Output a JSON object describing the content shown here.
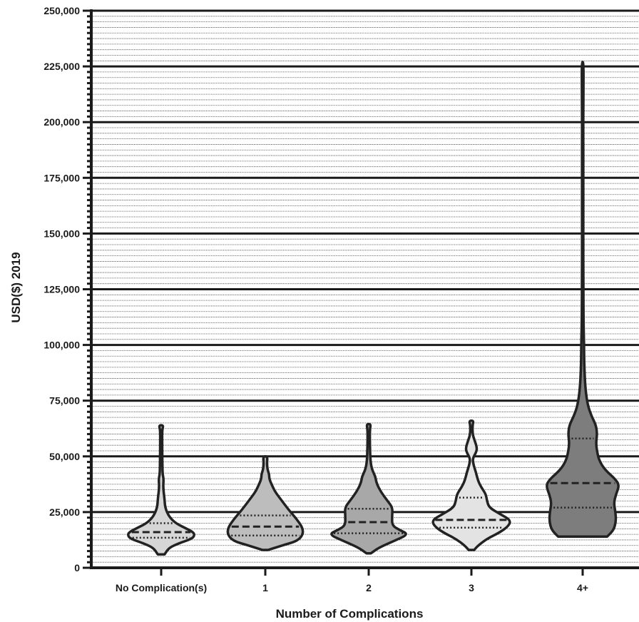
{
  "chart_data": {
    "type": "violin",
    "xlabel": "Number of Complications",
    "ylabel": "USD($) 2019",
    "ylim": [
      0,
      250000
    ],
    "y_ticks": [
      "0",
      "25,000",
      "50,000",
      "75,000",
      "100,000",
      "125,000",
      "150,000",
      "175,000",
      "200,000",
      "225,000",
      "250,000"
    ],
    "y_tick_values": [
      0,
      25000,
      50000,
      75000,
      100000,
      125000,
      150000,
      175000,
      200000,
      225000,
      250000
    ],
    "y_minor_step": 2500,
    "grid": true,
    "categories": [
      "No Complication(s)",
      "1",
      "2",
      "3",
      "4+"
    ],
    "series": [
      {
        "category": "No Complication(s)",
        "fill": "#d6d6d6",
        "median": 16000,
        "q1": 13500,
        "q3": 20000,
        "min": 6000,
        "max": 64000,
        "density": [
          [
            6000,
            0.06
          ],
          [
            9000,
            0.14
          ],
          [
            11000,
            0.32
          ],
          [
            13000,
            0.55
          ],
          [
            14500,
            0.6
          ],
          [
            16000,
            0.58
          ],
          [
            18000,
            0.42
          ],
          [
            20000,
            0.26
          ],
          [
            23000,
            0.14
          ],
          [
            27000,
            0.07
          ],
          [
            31000,
            0.06
          ],
          [
            36000,
            0.035
          ],
          [
            40000,
            0.045
          ],
          [
            42000,
            0.025
          ],
          [
            48000,
            0.02
          ],
          [
            56000,
            0.018
          ],
          [
            62000,
            0.018
          ],
          [
            64000,
            0.04
          ]
        ]
      },
      {
        "category": "1",
        "fill": "#bdbdbd",
        "median": 18500,
        "q1": 14500,
        "q3": 23500,
        "min": 8000,
        "max": 50000,
        "density": [
          [
            8000,
            0.05
          ],
          [
            10000,
            0.3
          ],
          [
            12000,
            0.58
          ],
          [
            15000,
            0.68
          ],
          [
            18000,
            0.67
          ],
          [
            22000,
            0.56
          ],
          [
            26000,
            0.42
          ],
          [
            30000,
            0.3
          ],
          [
            34000,
            0.18
          ],
          [
            37000,
            0.12
          ],
          [
            40000,
            0.07
          ],
          [
            42000,
            0.07
          ],
          [
            44000,
            0.04
          ],
          [
            47000,
            0.03
          ],
          [
            50000,
            0.04
          ]
        ]
      },
      {
        "category": "2",
        "fill": "#a8a8a8",
        "median": 20500,
        "q1": 15500,
        "q3": 26500,
        "min": 6500,
        "max": 64500,
        "density": [
          [
            6500,
            0.04
          ],
          [
            9000,
            0.18
          ],
          [
            12000,
            0.45
          ],
          [
            15000,
            0.72
          ],
          [
            17000,
            0.55
          ],
          [
            19000,
            0.42
          ],
          [
            23000,
            0.42
          ],
          [
            27000,
            0.43
          ],
          [
            30000,
            0.34
          ],
          [
            34000,
            0.22
          ],
          [
            38000,
            0.14
          ],
          [
            41000,
            0.12
          ],
          [
            44000,
            0.06
          ],
          [
            48000,
            0.03
          ],
          [
            56000,
            0.02
          ],
          [
            62000,
            0.02
          ],
          [
            64500,
            0.04
          ]
        ]
      },
      {
        "category": "3",
        "fill": "#e3e3e3",
        "median": 21500,
        "q1": 18000,
        "q3": 31500,
        "min": 8000,
        "max": 66000,
        "density": [
          [
            8000,
            0.05
          ],
          [
            10000,
            0.12
          ],
          [
            13000,
            0.28
          ],
          [
            16000,
            0.52
          ],
          [
            19000,
            0.68
          ],
          [
            21500,
            0.7
          ],
          [
            24000,
            0.52
          ],
          [
            27000,
            0.32
          ],
          [
            30000,
            0.28
          ],
          [
            33000,
            0.26
          ],
          [
            36000,
            0.18
          ],
          [
            39000,
            0.12
          ],
          [
            43000,
            0.08
          ],
          [
            46000,
            0.04
          ],
          [
            49000,
            0.02
          ],
          [
            52000,
            0.09
          ],
          [
            54000,
            0.1
          ],
          [
            57000,
            0.06
          ],
          [
            60000,
            0.02
          ],
          [
            64000,
            0.02
          ],
          [
            66000,
            0.04
          ]
        ]
      },
      {
        "category": "4+",
        "fill": "#7d7d7d",
        "median": 38000,
        "q1": 27000,
        "q3": 58000,
        "min": 14000,
        "max": 227000,
        "density": [
          [
            14000,
            0.44
          ],
          [
            17000,
            0.56
          ],
          [
            21000,
            0.6
          ],
          [
            25000,
            0.59
          ],
          [
            29000,
            0.56
          ],
          [
            33000,
            0.6
          ],
          [
            37000,
            0.66
          ],
          [
            40000,
            0.58
          ],
          [
            44000,
            0.4
          ],
          [
            48000,
            0.3
          ],
          [
            52000,
            0.26
          ],
          [
            56000,
            0.24
          ],
          [
            60000,
            0.26
          ],
          [
            64000,
            0.24
          ],
          [
            68000,
            0.16
          ],
          [
            73000,
            0.09
          ],
          [
            80000,
            0.05
          ],
          [
            90000,
            0.03
          ],
          [
            100000,
            0.025
          ],
          [
            110000,
            0.015
          ],
          [
            130000,
            0.012
          ],
          [
            150000,
            0.012
          ],
          [
            175000,
            0.012
          ],
          [
            200000,
            0.01
          ],
          [
            215000,
            0.015
          ],
          [
            227000,
            0.015
          ]
        ]
      }
    ]
  }
}
